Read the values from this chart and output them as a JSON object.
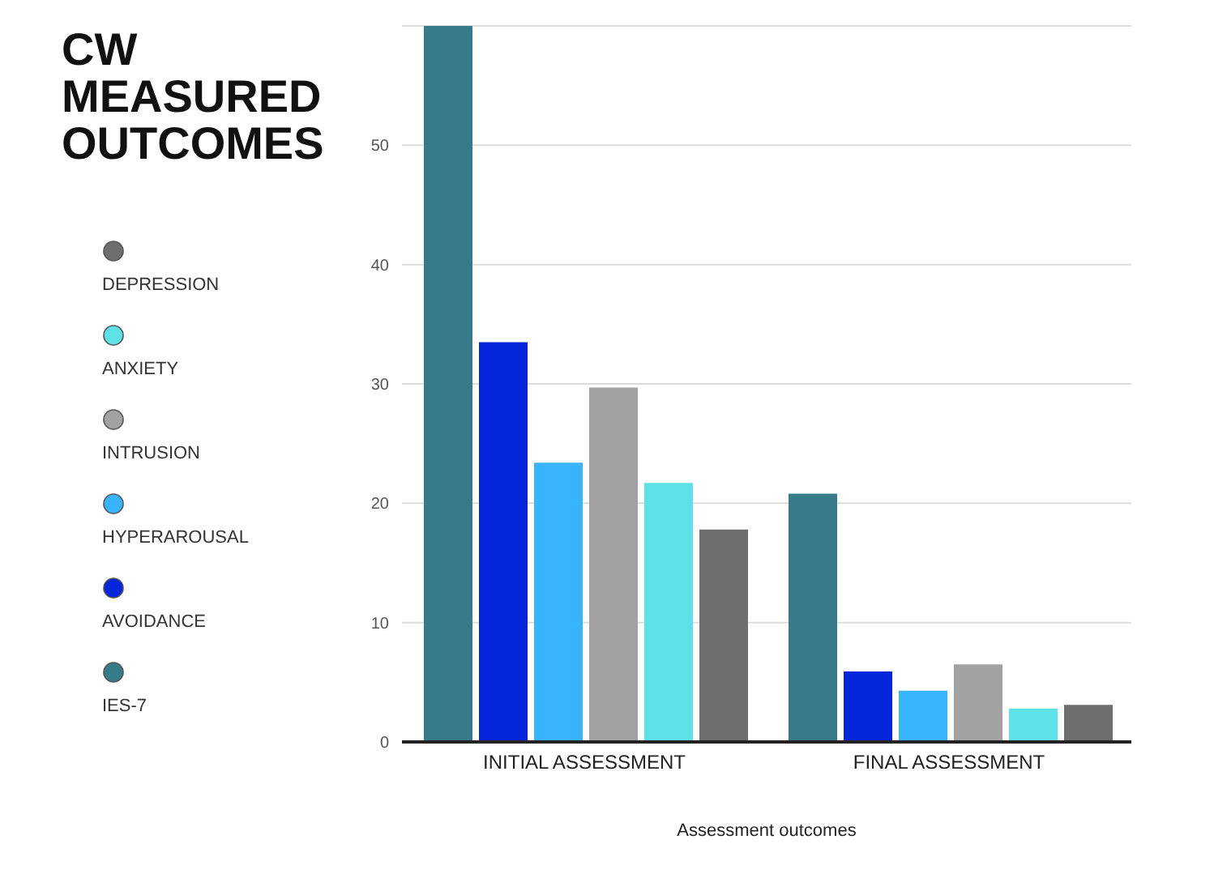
{
  "chart_data": {
    "type": "bar",
    "title": "CW\nMEASURED\nOUTCOMES",
    "xlabel": "Assessment outcomes",
    "categories": [
      "INITIAL ASSESSMENT",
      "FINAL ASSESSMENT"
    ],
    "series": [
      {
        "name": "IES-7",
        "color": "#377b8a",
        "values": [
          60,
          20.8
        ]
      },
      {
        "name": "AVOIDANCE",
        "color": "#0626dc",
        "values": [
          33.5,
          5.9
        ]
      },
      {
        "name": "HYPERAROUSAL",
        "color": "#38b4fc",
        "values": [
          23.4,
          4.3
        ]
      },
      {
        "name": "INTRUSION",
        "color": "#a2a2a2",
        "values": [
          29.7,
          6.5
        ]
      },
      {
        "name": "ANXIETY",
        "color": "#5de0e6",
        "values": [
          21.7,
          2.8
        ]
      },
      {
        "name": "DEPRESSION",
        "color": "#6e6e6e",
        "values": [
          17.8,
          3.1
        ]
      }
    ],
    "ylim": [
      0,
      60
    ],
    "yticks": [
      0,
      10,
      20,
      30,
      40,
      50
    ],
    "grid": "y",
    "legend": "left"
  }
}
